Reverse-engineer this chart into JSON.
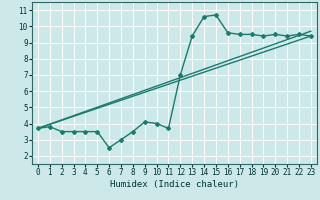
{
  "title": "",
  "xlabel": "Humidex (Indice chaleur)",
  "bg_color": "#cce8e8",
  "grid_color": "#ffffff",
  "line_color": "#1a7a6e",
  "xlim": [
    -0.5,
    23.5
  ],
  "ylim": [
    1.5,
    11.5
  ],
  "xticks": [
    0,
    1,
    2,
    3,
    4,
    5,
    6,
    7,
    8,
    9,
    10,
    11,
    12,
    13,
    14,
    15,
    16,
    17,
    18,
    19,
    20,
    21,
    22,
    23
  ],
  "yticks": [
    2,
    3,
    4,
    5,
    6,
    7,
    8,
    9,
    10,
    11
  ],
  "data_x": [
    0,
    1,
    2,
    3,
    4,
    5,
    6,
    7,
    8,
    9,
    10,
    11,
    12,
    13,
    14,
    15,
    16,
    17,
    18,
    19,
    20,
    21,
    22,
    23
  ],
  "data_y": [
    3.7,
    3.8,
    3.5,
    3.5,
    3.5,
    3.5,
    2.5,
    3.0,
    3.5,
    4.1,
    4.0,
    3.7,
    7.0,
    9.4,
    10.6,
    10.7,
    9.6,
    9.5,
    9.5,
    9.4,
    9.5,
    9.4,
    9.5,
    9.4
  ],
  "line1_x": [
    0,
    23
  ],
  "line1_y": [
    3.7,
    9.4
  ],
  "line2_x": [
    0,
    23
  ],
  "line2_y": [
    3.7,
    9.7
  ],
  "figsize": [
    3.2,
    2.0
  ],
  "dpi": 100,
  "font_family": "monospace"
}
